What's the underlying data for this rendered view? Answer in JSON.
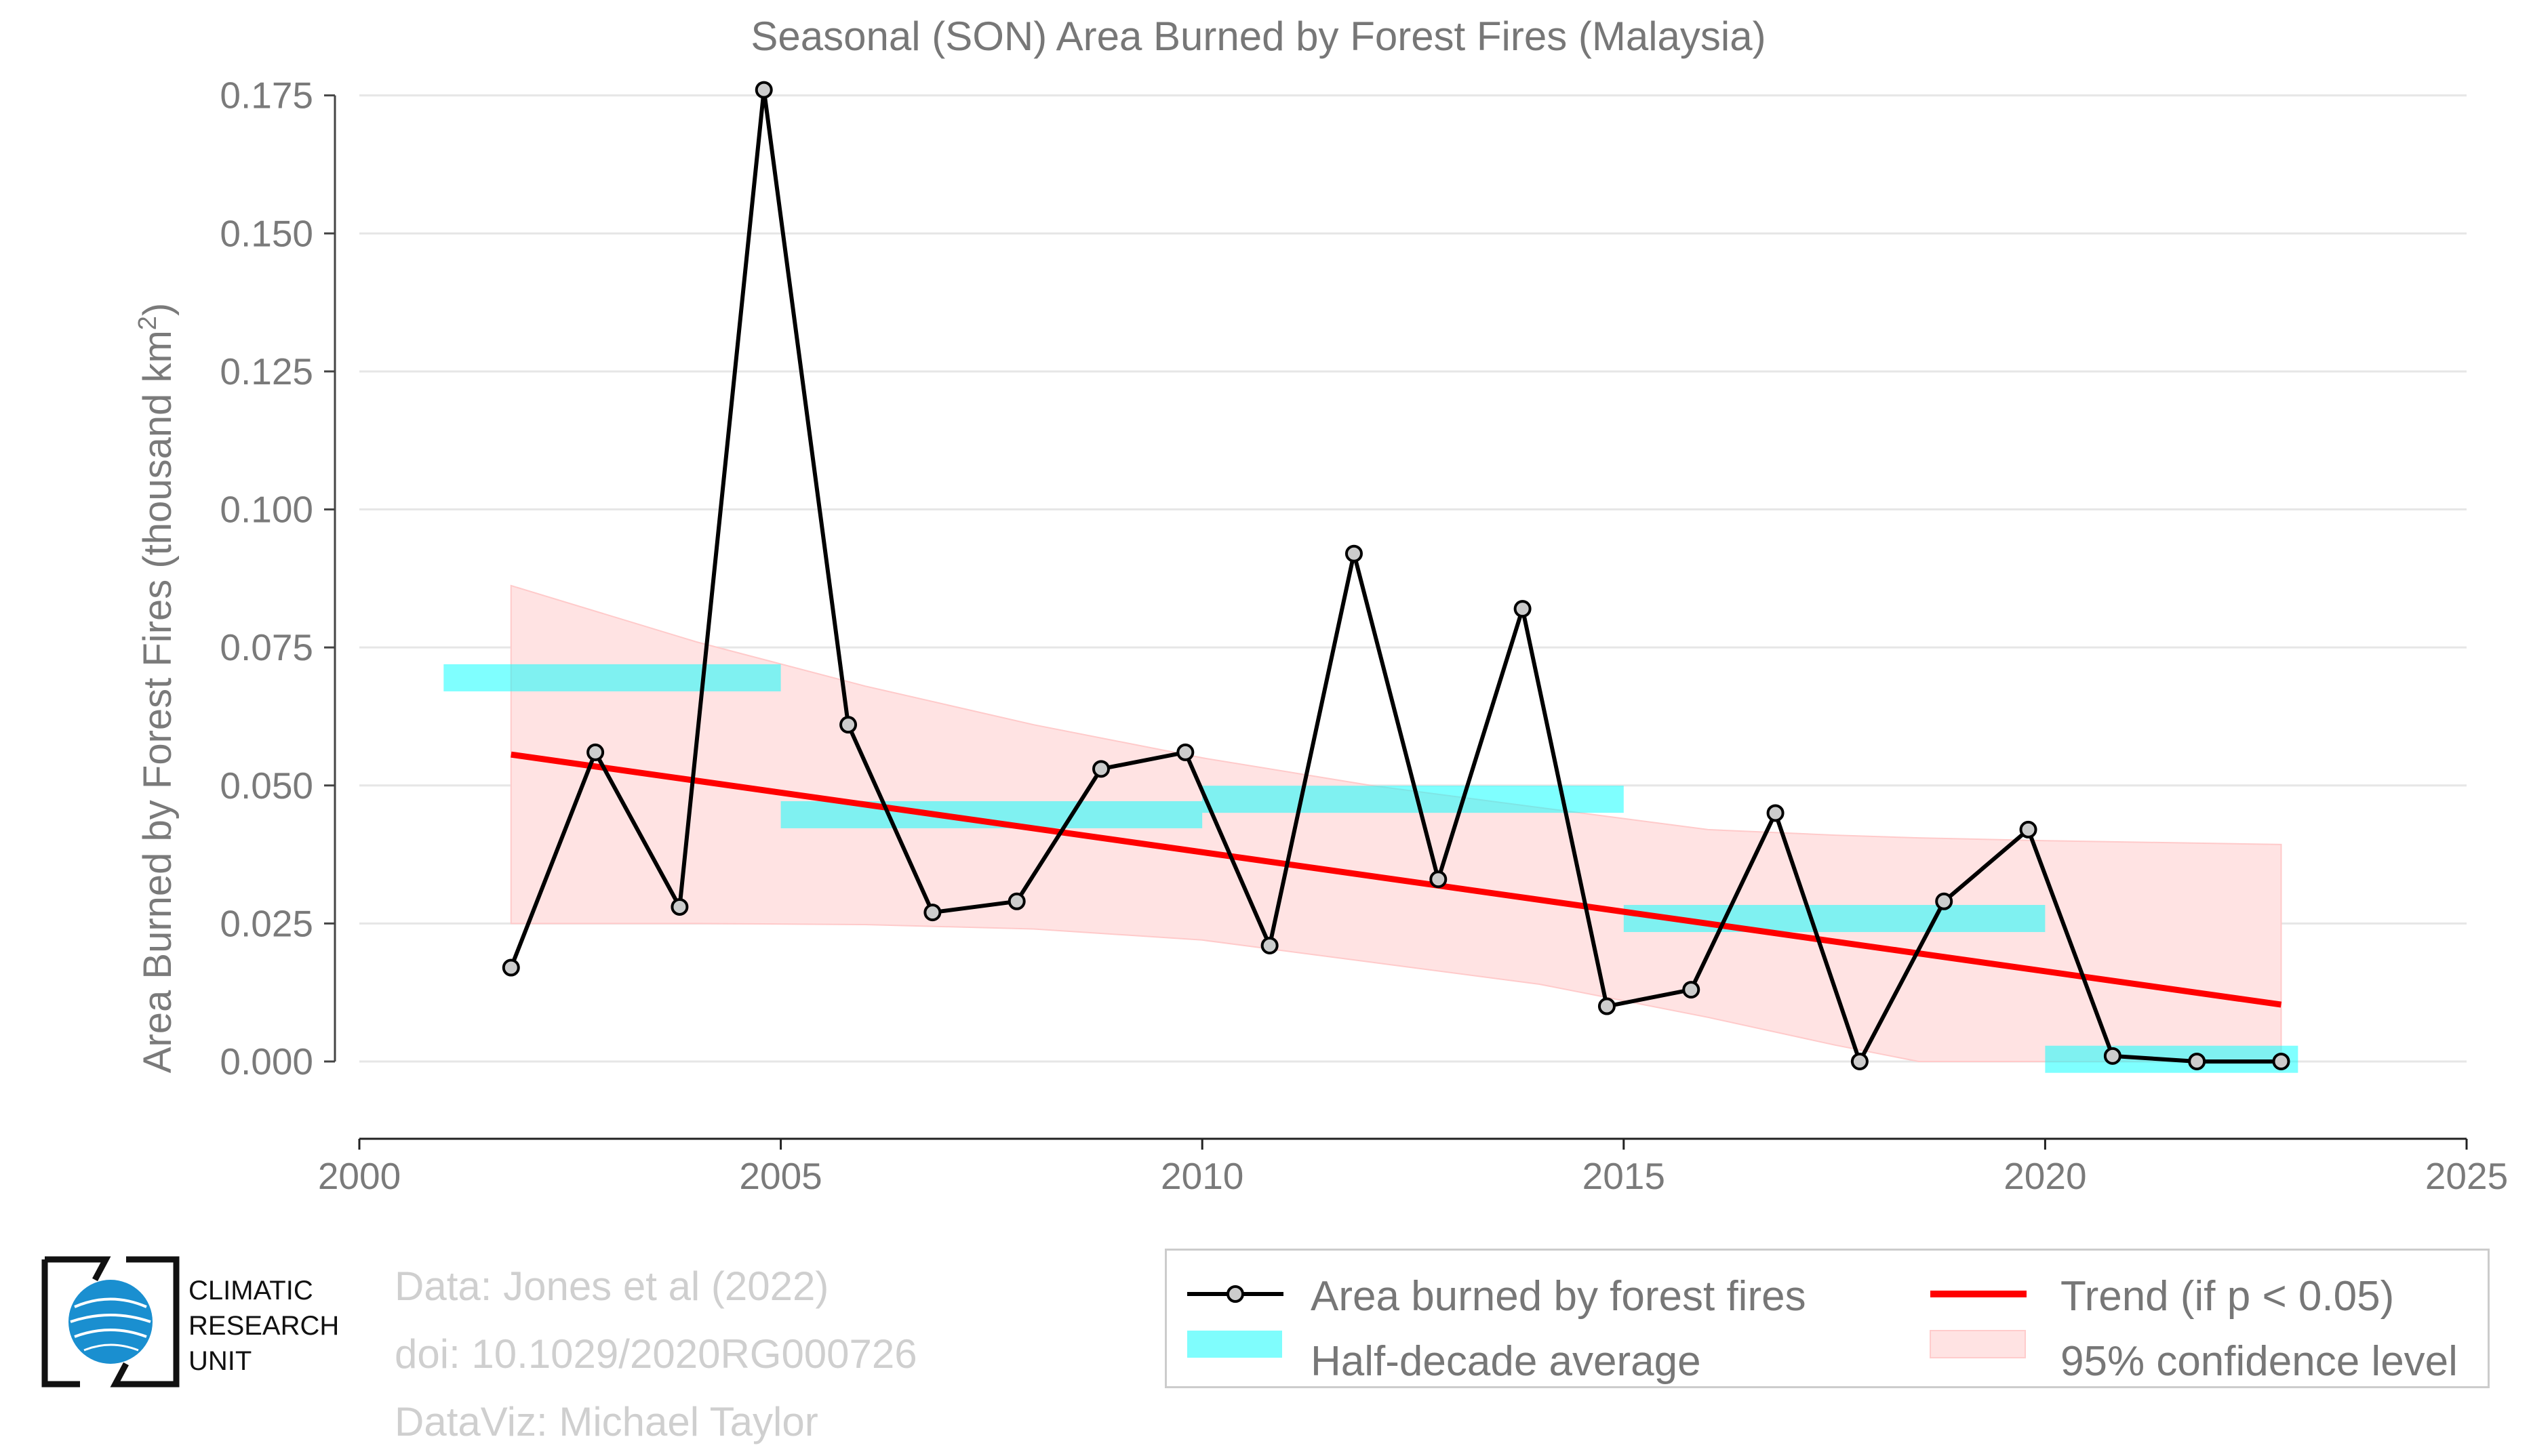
{
  "chart_data": {
    "type": "line",
    "title": "Seasonal (SON) Area Burned by Forest Fires (Malaysia)",
    "xlabel": "",
    "ylabel": "Area Burned by Forest Fires (thousand km",
    "ylabel_sup": "2",
    "ylabel_close": ")",
    "xlim": [
      2000,
      2025
    ],
    "ylim": [
      -0.014,
      0.18
    ],
    "xticks": [
      2000,
      2005,
      2010,
      2015,
      2020,
      2025
    ],
    "xtick_labels": [
      "2000",
      "2005",
      "2010",
      "2015",
      "2020",
      "2025"
    ],
    "yticks": [
      0.0,
      0.025,
      0.05,
      0.075,
      0.1,
      0.125,
      0.15,
      0.175
    ],
    "ytick_labels": [
      "0.000",
      "0.025",
      "0.050",
      "0.075",
      "0.100",
      "0.125",
      "0.150",
      "0.175"
    ],
    "series": [
      {
        "name": "Area burned by forest fires",
        "color": "#000000",
        "x": [
          2001.8,
          2002.8,
          2003.8,
          2004.8,
          2005.8,
          2006.8,
          2007.8,
          2008.8,
          2009.8,
          2010.8,
          2011.8,
          2012.8,
          2013.8,
          2014.8,
          2015.8,
          2016.8,
          2017.8,
          2018.8,
          2019.8,
          2020.8,
          2021.8,
          2022.8
        ],
        "values": [
          0.017,
          0.056,
          0.028,
          0.176,
          0.061,
          0.027,
          0.029,
          0.053,
          0.056,
          0.021,
          0.092,
          0.033,
          0.082,
          0.01,
          0.013,
          0.045,
          0.0,
          0.029,
          0.042,
          0.001,
          0.0,
          0.0
        ]
      }
    ],
    "half_decade_average": {
      "name": "Half-decade average",
      "color": "#00ffff",
      "segments": [
        {
          "x0": 2001,
          "x1": 2005,
          "value": 0.0695
        },
        {
          "x0": 2005,
          "x1": 2010,
          "value": 0.0447
        },
        {
          "x0": 2010,
          "x1": 2015,
          "value": 0.0475
        },
        {
          "x0": 2015,
          "x1": 2020,
          "value": 0.0259
        },
        {
          "x0": 2020,
          "x1": 2023,
          "value": 0.0004
        }
      ]
    },
    "trend": {
      "name": "Trend (if p < 0.05)",
      "color": "#ff0000",
      "x": [
        2001.8,
        2022.8
      ],
      "values": [
        0.0556,
        0.0103
      ]
    },
    "confidence_band": {
      "name": "95% confidence level",
      "color": "#ffe0e0",
      "x": [
        2001.8,
        2004,
        2006,
        2008,
        2010,
        2012,
        2014,
        2016,
        2017.5,
        2018.5,
        2020,
        2022.8
      ],
      "upper": [
        0.0862,
        0.076,
        0.068,
        0.061,
        0.055,
        0.05,
        0.046,
        0.042,
        0.041,
        0.0405,
        0.04,
        0.0393
      ],
      "lower": [
        0.025,
        0.025,
        0.0248,
        0.024,
        0.022,
        0.018,
        0.014,
        0.008,
        0.003,
        0.0,
        0.0,
        0.0
      ]
    },
    "legend_position": "bottom-right"
  },
  "credits": {
    "line1": "Data: Jones et al (2022)",
    "line2": "doi: 10.1029/2020RG000726",
    "line3": "DataViz: Michael Taylor"
  },
  "logo": {
    "line1": "CLIMATIC",
    "line2": "RESEARCH",
    "line3": "UNIT"
  },
  "legend": {
    "series_label": "Area burned by forest fires",
    "average_label": "Half-decade average",
    "trend_label": "Trend (if p < 0.05)",
    "confidence_label": "95% confidence level"
  }
}
